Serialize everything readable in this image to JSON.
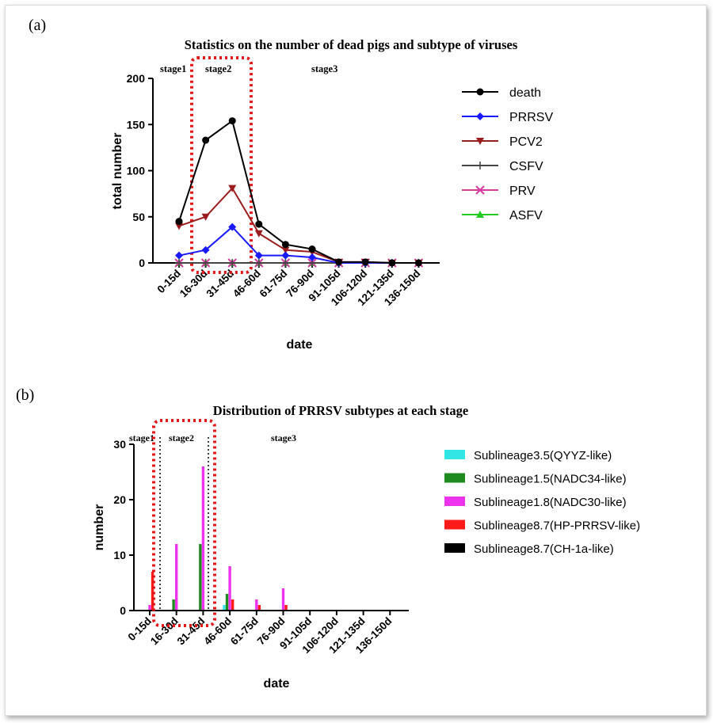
{
  "chart_data": [
    {
      "type": "line",
      "panel_label": "(a)",
      "title": "Statistics on the number of dead pigs and subtype of viruses",
      "xlabel": "date",
      "ylabel": "total number",
      "ylim": [
        0,
        200
      ],
      "yticks": [
        "0",
        "50",
        "100",
        "150",
        "200"
      ],
      "categories": [
        "0-15d",
        "16-30d",
        "31-45d",
        "46-60d",
        "61-75d",
        "76-90d",
        "91-105d",
        "106-120d",
        "121-135d",
        "136-150d"
      ],
      "stage_labels": [
        "stage1",
        "stage2",
        "stage3"
      ],
      "legend_position": "right",
      "series": [
        {
          "name": "death",
          "color": "#000000",
          "marker": "circle",
          "values": [
            45,
            133,
            154,
            42,
            20,
            15,
            1,
            1,
            0,
            0
          ]
        },
        {
          "name": "PRRSV",
          "color": "#1a1aff",
          "marker": "diamond",
          "values": [
            8,
            14,
            39,
            8,
            8,
            6,
            0,
            0,
            0,
            0
          ]
        },
        {
          "name": "PCV2",
          "color": "#9b1c1c",
          "marker": "triangle-down",
          "values": [
            40,
            50,
            81,
            32,
            14,
            12,
            1,
            1,
            0,
            0
          ]
        },
        {
          "name": "CSFV",
          "color": "#444444",
          "marker": "plus",
          "values": [
            0,
            0,
            0,
            0,
            0,
            0,
            0,
            0,
            0,
            0
          ]
        },
        {
          "name": "PRV",
          "color": "#d63ca0",
          "marker": "x",
          "values": [
            0,
            0,
            0,
            0,
            0,
            0,
            0,
            0,
            0,
            0
          ]
        },
        {
          "name": "ASFV",
          "color": "#22cc22",
          "marker": "triangle-up",
          "values": [
            0,
            0,
            0,
            0,
            0,
            0,
            0,
            0,
            0,
            0
          ]
        }
      ]
    },
    {
      "type": "bar",
      "panel_label": "(b)",
      "title": "Distribution of PRRSV subtypes at each stage",
      "xlabel": "date",
      "ylabel": "number",
      "ylim": [
        0,
        30
      ],
      "yticks": [
        "0",
        "10",
        "20",
        "30"
      ],
      "categories": [
        "0-15d",
        "16-30d",
        "31-45d",
        "46-60d",
        "61-75d",
        "76-90d",
        "91-105d",
        "106-120d",
        "121-135d",
        "136-150d"
      ],
      "stage_labels": [
        "stage1",
        "stage2",
        "stage3"
      ],
      "legend_position": "right",
      "series": [
        {
          "name": "Sublineage3.5(QYYZ-like)",
          "color": "#33e6e6",
          "values": [
            0,
            0,
            0,
            1,
            0,
            0,
            0,
            0,
            0,
            0
          ]
        },
        {
          "name": "Sublineage1.5(NADC34-like)",
          "color": "#1f8a1f",
          "values": [
            0,
            2,
            12,
            3,
            0,
            0,
            0,
            0,
            0,
            0
          ]
        },
        {
          "name": "Sublineage1.8(NADC30-like)",
          "color": "#ee33ee",
          "values": [
            1,
            12,
            26,
            8,
            2,
            4,
            0,
            0,
            0,
            0
          ]
        },
        {
          "name": "Sublineage8.7(HP-PRRSV-like)",
          "color": "#ff1a1a",
          "values": [
            7,
            0,
            0,
            2,
            1,
            1,
            0,
            0,
            0,
            0
          ]
        },
        {
          "name": "Sublineage8.7(CH-1a-like)",
          "color": "#000000",
          "values": [
            0,
            0,
            0,
            0,
            0,
            0,
            0,
            0,
            0,
            0
          ]
        }
      ]
    }
  ]
}
